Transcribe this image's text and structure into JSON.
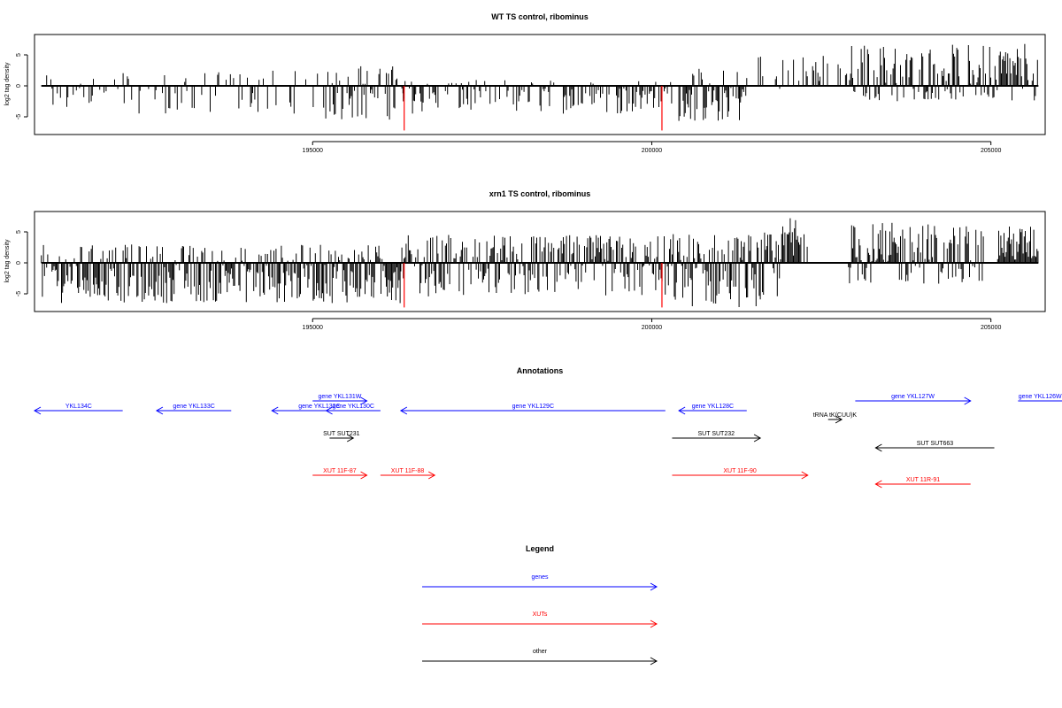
{
  "chart_data": [
    {
      "type": "bar",
      "title": "WT TS control, ribominus",
      "ylabel": "log2 tag density",
      "xlabel": "",
      "x_range": [
        190900,
        205800
      ],
      "ylim": [
        -7.5,
        7.5
      ],
      "y_ticks": [
        "-5",
        "0",
        "5"
      ],
      "x_ticks": [
        "195000",
        "200000",
        "205000"
      ],
      "bars_color": "#000000",
      "highlight_color": "#ff0000",
      "highlight_bars": [
        {
          "x": 196350,
          "value": -7.2
        },
        {
          "x": 200150,
          "value": -7.2
        }
      ],
      "density_profile": [
        {
          "x_start": 191000,
          "x_end": 195100,
          "min": -4.5,
          "max": 2.5,
          "density": 0.35
        },
        {
          "x_start": 195100,
          "x_end": 196300,
          "min": -5.5,
          "max": 3.5,
          "density": 0.6
        },
        {
          "x_start": 196300,
          "x_end": 200300,
          "min": -4.5,
          "max": 1.0,
          "density": 0.5
        },
        {
          "x_start": 200400,
          "x_end": 201400,
          "min": -6.0,
          "max": 3.0,
          "density": 0.9
        },
        {
          "x_start": 201400,
          "x_end": 202900,
          "min": -0.5,
          "max": 5.0,
          "density": 0.3
        },
        {
          "x_start": 202900,
          "x_end": 205700,
          "min": -2.5,
          "max": 6.8,
          "density": 0.85
        }
      ]
    },
    {
      "type": "bar",
      "title": "xrn1 TS control, ribominus",
      "ylabel": "log2 tag density",
      "xlabel": "",
      "x_range": [
        190900,
        205800
      ],
      "ylim": [
        -7.5,
        7.5
      ],
      "y_ticks": [
        "-5",
        "0",
        "5"
      ],
      "x_ticks": [
        "195000",
        "200000",
        "205000"
      ],
      "bars_color": "#000000",
      "highlight_color": "#ff0000",
      "highlight_bars": [
        {
          "x": 196350,
          "value": -7.2
        },
        {
          "x": 200150,
          "value": -7.2
        }
      ],
      "density_profile": [
        {
          "x_start": 191000,
          "x_end": 195100,
          "min": -6.5,
          "max": 3.0,
          "density": 0.9
        },
        {
          "x_start": 195100,
          "x_end": 196300,
          "min": -6.5,
          "max": 3.0,
          "density": 1.0
        },
        {
          "x_start": 196300,
          "x_end": 200300,
          "min": -5.5,
          "max": 4.5,
          "density": 0.9
        },
        {
          "x_start": 200300,
          "x_end": 201900,
          "min": -7.2,
          "max": 5.0,
          "density": 1.0
        },
        {
          "x_start": 201900,
          "x_end": 202300,
          "min": -1.0,
          "max": 7.8,
          "density": 0.7
        },
        {
          "x_start": 202900,
          "x_end": 204900,
          "min": -3.5,
          "max": 6.5,
          "density": 0.9
        },
        {
          "x_start": 205100,
          "x_end": 205700,
          "min": 0,
          "max": 6.0,
          "density": 1.0
        }
      ]
    }
  ],
  "annotations": {
    "title": "Annotations",
    "x_range": [
      190900,
      205800
    ],
    "features": [
      {
        "label": "YKL134C",
        "category": "genes",
        "strand": "-",
        "start": 190900,
        "end": 192200,
        "row": 1
      },
      {
        "label": "gene YKL133C",
        "category": "genes",
        "strand": "-",
        "start": 192700,
        "end": 193800,
        "row": 1
      },
      {
        "label": "gene YKL132C",
        "category": "genes",
        "strand": "-",
        "start": 194400,
        "end": 195800,
        "row": 1
      },
      {
        "label": "gene YKL131W",
        "category": "genes",
        "strand": "+",
        "start": 195000,
        "end": 195800,
        "row": 0
      },
      {
        "label": "gene YKL130C",
        "category": "genes",
        "strand": "-",
        "start": 195200,
        "end": 196000,
        "row": 1
      },
      {
        "label": "gene YKL129C",
        "category": "genes",
        "strand": "-",
        "start": 196300,
        "end": 200200,
        "row": 1
      },
      {
        "label": "gene YKL128C",
        "category": "genes",
        "strand": "-",
        "start": 200400,
        "end": 201400,
        "row": 1
      },
      {
        "label": "tRNA tK(CUU)K",
        "category": "other",
        "strand": "+",
        "start": 202600,
        "end": 202800,
        "row": 2
      },
      {
        "label": "gene YKL127W",
        "category": "genes",
        "strand": "+",
        "start": 203000,
        "end": 204700,
        "row": 0
      },
      {
        "label": "gene YKL126W",
        "category": "genes",
        "strand": "+",
        "start": 205400,
        "end": 207000,
        "row": 0
      },
      {
        "label": "SUT SUT231",
        "category": "other",
        "strand": "+",
        "start": 195250,
        "end": 195600,
        "row": 3
      },
      {
        "label": "SUT SUT232",
        "category": "other",
        "strand": "+",
        "start": 200300,
        "end": 201600,
        "row": 3
      },
      {
        "label": "SUT SUT663",
        "category": "other",
        "strand": "-",
        "start": 203300,
        "end": 205050,
        "row": 4
      },
      {
        "label": "XUT 11F-87",
        "category": "XUTs",
        "strand": "+",
        "start": 195000,
        "end": 195800,
        "row": 5
      },
      {
        "label": "XUT 11F-88",
        "category": "XUTs",
        "strand": "+",
        "start": 196000,
        "end": 196800,
        "row": 5
      },
      {
        "label": "XUT 11F-90",
        "category": "XUTs",
        "strand": "+",
        "start": 200300,
        "end": 202300,
        "row": 5
      },
      {
        "label": "XUT 11R-91",
        "category": "XUTs",
        "strand": "-",
        "start": 203300,
        "end": 204700,
        "row": 6
      }
    ]
  },
  "legend": {
    "title": "Legend",
    "items": [
      {
        "label": "genes",
        "color": "#0000ff"
      },
      {
        "label": "XUTs",
        "color": "#ff0000"
      },
      {
        "label": "other",
        "color": "#000000"
      }
    ]
  },
  "colors": {
    "genes": "#0000ff",
    "XUTs": "#ff0000",
    "other": "#000000"
  }
}
